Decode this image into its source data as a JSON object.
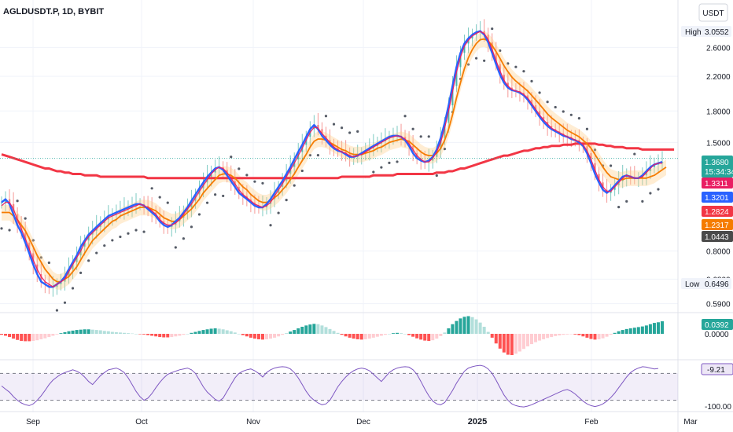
{
  "header": {
    "title": "AGLDUSDT.P, 1D, BYBIT",
    "currency": "USDT"
  },
  "chart_data": {
    "type": "line",
    "symbol": "AGLDUSDT.P",
    "timeframe": "1D",
    "exchange": "BYBIT",
    "x_labels": [
      "Sep",
      "Oct",
      "Nov",
      "Dec",
      "2025",
      "Feb",
      "Mar"
    ],
    "price_scale": "log",
    "price_ticks": [
      "2.6000",
      "2.2000",
      "1.8000",
      "1.5000",
      "0.8000",
      "0.6800",
      "0.5900"
    ],
    "ylim": [
      0.5678,
      3.3
    ],
    "high": {
      "label": "High",
      "value": "3.0552"
    },
    "low": {
      "label": "Low",
      "value": "0.6496"
    },
    "last_price": {
      "value": "1.3680",
      "countdown": "15:34:34",
      "color": "#26a69a"
    },
    "price_tags": [
      {
        "value": "1.3311",
        "color": "#e91e63"
      },
      {
        "value": "1.3201",
        "color": "#2962ff"
      },
      {
        "value": "1.2824",
        "color": "#f23645"
      },
      {
        "value": "1.2317",
        "color": "#f57c00"
      },
      {
        "value": "1.0443",
        "color": "#4a4a4a"
      }
    ],
    "candles_close": [
      1.06,
      1.08,
      1.05,
      0.99,
      0.93,
      0.89,
      0.84,
      0.79,
      0.74,
      0.7,
      0.67,
      0.66,
      0.65,
      0.65,
      0.66,
      0.67,
      0.69,
      0.72,
      0.75,
      0.78,
      0.82,
      0.85,
      0.88,
      0.9,
      0.92,
      0.94,
      0.96,
      0.98,
      0.99,
      1.0,
      1.01,
      1.02,
      1.03,
      1.04,
      1.05,
      1.05,
      1.04,
      1.02,
      1.0,
      0.98,
      0.95,
      0.93,
      0.92,
      0.93,
      0.95,
      0.97,
      1.0,
      1.03,
      1.07,
      1.11,
      1.15,
      1.19,
      1.23,
      1.26,
      1.29,
      1.3,
      1.28,
      1.24,
      1.2,
      1.16,
      1.12,
      1.1,
      1.08,
      1.06,
      1.04,
      1.03,
      1.03,
      1.05,
      1.08,
      1.12,
      1.16,
      1.2,
      1.25,
      1.3,
      1.36,
      1.42,
      1.48,
      1.55,
      1.62,
      1.66,
      1.62,
      1.56,
      1.52,
      1.48,
      1.45,
      1.43,
      1.42,
      1.4,
      1.38,
      1.38,
      1.39,
      1.41,
      1.43,
      1.45,
      1.47,
      1.49,
      1.51,
      1.53,
      1.55,
      1.56,
      1.56,
      1.55,
      1.52,
      1.47,
      1.41,
      1.37,
      1.35,
      1.34,
      1.35,
      1.38,
      1.44,
      1.54,
      1.68,
      1.86,
      2.08,
      2.32,
      2.52,
      2.66,
      2.74,
      2.8,
      2.84,
      2.86,
      2.8,
      2.68,
      2.52,
      2.36,
      2.22,
      2.12,
      2.06,
      2.03,
      2.02,
      2.0,
      1.97,
      1.92,
      1.86,
      1.8,
      1.74,
      1.69,
      1.65,
      1.62,
      1.6,
      1.58,
      1.56,
      1.55,
      1.53,
      1.52,
      1.5,
      1.47,
      1.41,
      1.33,
      1.25,
      1.19,
      1.14,
      1.12,
      1.14,
      1.17,
      1.2,
      1.23,
      1.24,
      1.23,
      1.22,
      1.22,
      1.24,
      1.27,
      1.3,
      1.32,
      1.33,
      1.34
    ],
    "series": [
      {
        "name": "",
        "color": "#f23645",
        "values": [
          1.4,
          1.39,
          1.38,
          1.37,
          1.36,
          1.35,
          1.34,
          1.33,
          1.32,
          1.31,
          1.3,
          1.29,
          1.29,
          1.28,
          1.27,
          1.27,
          1.26,
          1.26,
          1.25,
          1.25,
          1.25,
          1.24,
          1.24,
          1.24,
          1.24,
          1.23,
          1.23,
          1.23,
          1.23,
          1.23,
          1.23,
          1.23,
          1.23,
          1.23,
          1.23,
          1.23,
          1.23,
          1.22,
          1.22,
          1.22,
          1.22,
          1.22,
          1.22,
          1.22,
          1.22,
          1.22,
          1.22,
          1.22,
          1.22,
          1.22,
          1.22,
          1.22,
          1.22,
          1.22,
          1.22,
          1.22,
          1.22,
          1.22,
          1.22,
          1.22,
          1.22,
          1.22,
          1.22,
          1.22,
          1.22,
          1.22,
          1.22,
          1.22,
          1.22,
          1.22,
          1.22,
          1.22,
          1.22,
          1.22,
          1.22,
          1.22,
          1.22,
          1.22,
          1.22,
          1.22,
          1.22,
          1.22,
          1.22,
          1.22,
          1.22,
          1.22,
          1.23,
          1.23,
          1.23,
          1.23,
          1.23,
          1.23,
          1.23,
          1.23,
          1.24,
          1.24,
          1.24,
          1.24,
          1.24,
          1.24,
          1.25,
          1.25,
          1.25,
          1.25,
          1.25,
          1.25,
          1.25,
          1.25,
          1.25,
          1.25,
          1.26,
          1.26,
          1.26,
          1.27,
          1.27,
          1.28,
          1.29,
          1.29,
          1.3,
          1.31,
          1.32,
          1.33,
          1.34,
          1.35,
          1.36,
          1.37,
          1.38,
          1.39,
          1.39,
          1.4,
          1.41,
          1.42,
          1.43,
          1.43,
          1.44,
          1.45,
          1.45,
          1.46,
          1.46,
          1.47,
          1.47,
          1.47,
          1.48,
          1.48,
          1.48,
          1.49,
          1.49,
          1.49,
          1.49,
          1.49,
          1.49,
          1.48,
          1.48,
          1.47,
          1.47,
          1.46,
          1.46,
          1.46,
          1.45,
          1.45,
          1.45,
          1.45,
          1.44,
          1.44,
          1.44,
          1.44,
          1.44,
          1.44,
          1.44,
          1.44,
          1.44
        ]
      },
      {
        "name": "",
        "color": "#f57c00",
        "values": [
          1.0,
          1.0,
          1.0,
          0.98,
          0.96,
          0.93,
          0.9,
          0.86,
          0.82,
          0.78,
          0.75,
          0.72,
          0.7,
          0.68,
          0.67,
          0.67,
          0.68,
          0.69,
          0.71,
          0.73,
          0.76,
          0.79,
          0.82,
          0.85,
          0.87,
          0.89,
          0.91,
          0.93,
          0.95,
          0.96,
          0.98,
          0.99,
          1.0,
          1.01,
          1.02,
          1.03,
          1.03,
          1.03,
          1.02,
          1.01,
          0.99,
          0.97,
          0.96,
          0.95,
          0.95,
          0.96,
          0.98,
          1.0,
          1.02,
          1.05,
          1.08,
          1.12,
          1.15,
          1.18,
          1.21,
          1.24,
          1.25,
          1.25,
          1.24,
          1.22,
          1.19,
          1.16,
          1.14,
          1.11,
          1.09,
          1.07,
          1.06,
          1.06,
          1.07,
          1.09,
          1.11,
          1.14,
          1.17,
          1.21,
          1.25,
          1.3,
          1.35,
          1.4,
          1.46,
          1.51,
          1.53,
          1.53,
          1.52,
          1.5,
          1.48,
          1.46,
          1.44,
          1.43,
          1.41,
          1.4,
          1.4,
          1.4,
          1.41,
          1.42,
          1.43,
          1.45,
          1.46,
          1.48,
          1.5,
          1.51,
          1.52,
          1.53,
          1.52,
          1.51,
          1.48,
          1.45,
          1.42,
          1.4,
          1.39,
          1.39,
          1.41,
          1.45,
          1.52,
          1.62,
          1.76,
          1.94,
          2.12,
          2.3,
          2.45,
          2.57,
          2.66,
          2.72,
          2.73,
          2.7,
          2.63,
          2.54,
          2.44,
          2.34,
          2.26,
          2.19,
          2.14,
          2.1,
          2.06,
          2.02,
          1.97,
          1.92,
          1.87,
          1.82,
          1.77,
          1.73,
          1.7,
          1.67,
          1.64,
          1.61,
          1.59,
          1.57,
          1.55,
          1.52,
          1.49,
          1.45,
          1.4,
          1.35,
          1.3,
          1.26,
          1.23,
          1.22,
          1.21,
          1.21,
          1.22,
          1.22,
          1.22,
          1.22,
          1.22,
          1.22,
          1.23,
          1.24,
          1.26,
          1.28,
          1.3
        ]
      },
      {
        "name": "",
        "color": "#2962ff",
        "values": [
          1.06,
          1.08,
          1.05,
          0.99,
          0.93,
          0.89,
          0.84,
          0.79,
          0.74,
          0.7,
          0.67,
          0.66,
          0.65,
          0.65,
          0.66,
          0.67,
          0.69,
          0.72,
          0.75,
          0.78,
          0.82,
          0.85,
          0.88,
          0.9,
          0.92,
          0.94,
          0.96,
          0.98,
          0.99,
          1.0,
          1.01,
          1.02,
          1.03,
          1.04,
          1.05,
          1.05,
          1.04,
          1.02,
          1.0,
          0.98,
          0.95,
          0.93,
          0.92,
          0.93,
          0.95,
          0.97,
          1.0,
          1.03,
          1.07,
          1.11,
          1.15,
          1.19,
          1.23,
          1.26,
          1.29,
          1.3,
          1.28,
          1.24,
          1.2,
          1.16,
          1.12,
          1.1,
          1.08,
          1.06,
          1.04,
          1.03,
          1.03,
          1.05,
          1.08,
          1.12,
          1.16,
          1.2,
          1.25,
          1.3,
          1.36,
          1.42,
          1.48,
          1.55,
          1.62,
          1.66,
          1.62,
          1.56,
          1.52,
          1.48,
          1.45,
          1.43,
          1.42,
          1.4,
          1.38,
          1.38,
          1.39,
          1.41,
          1.43,
          1.45,
          1.47,
          1.49,
          1.51,
          1.53,
          1.55,
          1.56,
          1.56,
          1.55,
          1.52,
          1.47,
          1.41,
          1.37,
          1.35,
          1.34,
          1.35,
          1.38,
          1.44,
          1.54,
          1.68,
          1.86,
          2.08,
          2.32,
          2.52,
          2.66,
          2.74,
          2.8,
          2.84,
          2.86,
          2.8,
          2.68,
          2.52,
          2.36,
          2.22,
          2.12,
          2.06,
          2.03,
          2.02,
          2.0,
          1.97,
          1.92,
          1.86,
          1.8,
          1.74,
          1.69,
          1.65,
          1.62,
          1.6,
          1.58,
          1.56,
          1.55,
          1.53,
          1.52,
          1.5,
          1.47,
          1.41,
          1.33,
          1.25,
          1.19,
          1.14,
          1.12,
          1.14,
          1.17,
          1.2,
          1.23,
          1.24,
          1.23,
          1.22,
          1.22,
          1.24,
          1.27,
          1.3,
          1.32,
          1.33,
          1.34
        ]
      },
      {
        "name": "",
        "color": "#e91e63",
        "values": [
          1.04,
          1.06,
          1.06,
          1.02,
          0.96,
          0.91,
          0.86,
          0.81,
          0.76,
          0.72,
          0.69,
          0.67,
          0.66,
          0.65,
          0.66,
          0.67,
          0.68,
          0.71,
          0.74,
          0.77,
          0.8,
          0.84,
          0.87,
          0.89,
          0.91,
          0.93,
          0.95,
          0.97,
          0.98,
          0.99,
          1.0,
          1.01,
          1.02,
          1.03,
          1.04,
          1.05,
          1.04,
          1.03,
          1.01,
          0.99,
          0.96,
          0.94,
          0.93,
          0.93,
          0.94,
          0.96,
          0.99,
          1.02,
          1.05,
          1.09,
          1.13,
          1.17,
          1.21,
          1.25,
          1.28,
          1.3,
          1.29,
          1.26,
          1.22,
          1.18,
          1.14,
          1.11,
          1.09,
          1.07,
          1.05,
          1.04,
          1.03,
          1.04,
          1.06,
          1.1,
          1.14,
          1.18,
          1.23,
          1.28,
          1.33,
          1.39,
          1.45,
          1.52,
          1.59,
          1.64,
          1.63,
          1.58,
          1.54,
          1.5,
          1.46,
          1.44,
          1.42,
          1.41,
          1.39,
          1.38,
          1.39,
          1.4,
          1.42,
          1.44,
          1.46,
          1.48,
          1.5,
          1.52,
          1.54,
          1.55,
          1.56,
          1.55,
          1.53,
          1.49,
          1.44,
          1.39,
          1.36,
          1.34,
          1.34,
          1.37,
          1.42,
          1.5,
          1.63,
          1.8,
          2.01,
          2.25,
          2.46,
          2.62,
          2.71,
          2.78,
          2.82,
          2.85,
          2.82,
          2.72,
          2.57,
          2.41,
          2.27,
          2.15,
          2.08,
          2.04,
          2.02,
          2.01,
          1.98,
          1.94,
          1.88,
          1.82,
          1.76,
          1.71,
          1.67,
          1.63,
          1.61,
          1.59,
          1.57,
          1.55,
          1.54,
          1.52,
          1.51,
          1.48,
          1.43,
          1.36,
          1.28,
          1.21,
          1.16,
          1.13,
          1.13,
          1.16,
          1.19,
          1.22,
          1.24,
          1.23,
          1.22,
          1.22,
          1.23,
          1.26,
          1.29,
          1.32,
          1.33,
          1.33
        ]
      }
    ],
    "macd_histogram": [
      -0.003,
      -0.006,
      -0.01,
      -0.015,
      -0.019,
      -0.022,
      -0.023,
      -0.023,
      -0.022,
      -0.02,
      -0.017,
      -0.014,
      -0.01,
      -0.006,
      -0.002,
      0.002,
      0.005,
      0.008,
      0.01,
      0.012,
      0.013,
      0.014,
      0.014,
      0.013,
      0.012,
      0.011,
      0.009,
      0.008,
      0.006,
      0.005,
      0.004,
      0.003,
      0.002,
      0.001,
      0.0,
      -0.001,
      -0.002,
      -0.004,
      -0.006,
      -0.008,
      -0.01,
      -0.011,
      -0.011,
      -0.01,
      -0.008,
      -0.006,
      -0.003,
      0.0,
      0.003,
      0.006,
      0.009,
      0.012,
      0.014,
      0.016,
      0.017,
      0.016,
      0.014,
      0.011,
      0.008,
      0.004,
      0.0,
      -0.004,
      -0.008,
      -0.012,
      -0.015,
      -0.017,
      -0.018,
      -0.017,
      -0.015,
      -0.012,
      -0.008,
      -0.003,
      0.002,
      0.007,
      0.012,
      0.017,
      0.022,
      0.026,
      0.029,
      0.031,
      0.03,
      0.026,
      0.021,
      0.015,
      0.009,
      0.003,
      -0.003,
      -0.008,
      -0.012,
      -0.015,
      -0.017,
      -0.018,
      -0.017,
      -0.015,
      -0.012,
      -0.009,
      -0.006,
      -0.003,
      0.0,
      0.002,
      0.003,
      0.002,
      0.0,
      -0.004,
      -0.009,
      -0.014,
      -0.018,
      -0.021,
      -0.022,
      -0.02,
      -0.015,
      -0.007,
      0.004,
      0.017,
      0.03,
      0.04,
      0.048,
      0.053,
      0.055,
      0.052,
      0.045,
      0.035,
      0.022,
      0.006,
      -0.012,
      -0.03,
      -0.046,
      -0.058,
      -0.065,
      -0.066,
      -0.062,
      -0.055,
      -0.047,
      -0.039,
      -0.032,
      -0.026,
      -0.021,
      -0.017,
      -0.013,
      -0.01,
      -0.007,
      -0.005,
      -0.003,
      -0.002,
      -0.001,
      -0.002,
      -0.004,
      -0.008,
      -0.012,
      -0.016,
      -0.018,
      -0.017,
      -0.014,
      -0.009,
      -0.003,
      0.003,
      0.008,
      0.012,
      0.015,
      0.017,
      0.019,
      0.021,
      0.023,
      0.026,
      0.03,
      0.034,
      0.036,
      0.039
    ],
    "macd_label": "0.0392",
    "macd_zero_label": "0.0000",
    "oscillator": [
      -48,
      -55,
      -62,
      -72,
      -80,
      -86,
      -90,
      -92,
      -88,
      -80,
      -70,
      -58,
      -45,
      -35,
      -28,
      -22,
      -18,
      -15,
      -12,
      -15,
      -20,
      -28,
      -38,
      -45,
      -35,
      -25,
      -18,
      -12,
      -10,
      -8,
      -12,
      -18,
      -30,
      -45,
      -60,
      -72,
      -80,
      -75,
      -65,
      -52,
      -40,
      -30,
      -22,
      -18,
      -15,
      -12,
      -10,
      -8,
      -12,
      -20,
      -35,
      -50,
      -62,
      -70,
      -78,
      -82,
      -75,
      -60,
      -45,
      -30,
      -20,
      -15,
      -12,
      -10,
      -14,
      -20,
      -28,
      -18,
      -12,
      -8,
      -6,
      -5,
      -6,
      -10,
      -18,
      -30,
      -45,
      -60,
      -72,
      -80,
      -86,
      -90,
      -88,
      -80,
      -65,
      -50,
      -38,
      -28,
      -20,
      -14,
      -10,
      -8,
      -10,
      -14,
      -22,
      -30,
      -38,
      -28,
      -18,
      -12,
      -8,
      -6,
      -5,
      -6,
      -12,
      -22,
      -38,
      -55,
      -70,
      -82,
      -88,
      -90,
      -85,
      -72,
      -58,
      -42,
      -28,
      -15,
      -8,
      -5,
      -3,
      -2,
      -4,
      -10,
      -20,
      -35,
      -52,
      -68,
      -80,
      -88,
      -92,
      -94,
      -95,
      -93,
      -90,
      -86,
      -82,
      -78,
      -74,
      -70,
      -66,
      -62,
      -58,
      -56,
      -60,
      -66,
      -74,
      -82,
      -88,
      -92,
      -94,
      -92,
      -88,
      -82,
      -74,
      -64,
      -52,
      -40,
      -28,
      -18,
      -12,
      -8,
      -5,
      -6,
      -8,
      -10,
      -9
    ],
    "oscillator_label": "-9.21",
    "oscillator_bottom_label": "-100.00"
  }
}
